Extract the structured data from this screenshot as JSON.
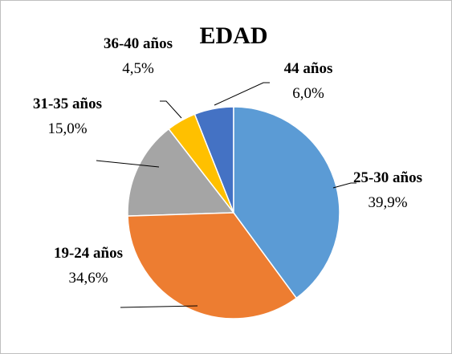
{
  "chart_data": {
    "type": "pie",
    "title": "EDAD",
    "categories": [
      "25-30 años",
      "19-24 años",
      "31-35 años",
      "36-40 años",
      "44 años"
    ],
    "values": [
      39.9,
      34.6,
      15.0,
      4.5,
      6.0
    ],
    "value_labels": [
      "39,9%",
      "34,6%",
      "15,0%",
      "4,5%",
      "6,0%"
    ],
    "colors": [
      "#5b9bd5",
      "#ed7d31",
      "#a5a5a5",
      "#ffc000",
      "#4472c4"
    ]
  }
}
